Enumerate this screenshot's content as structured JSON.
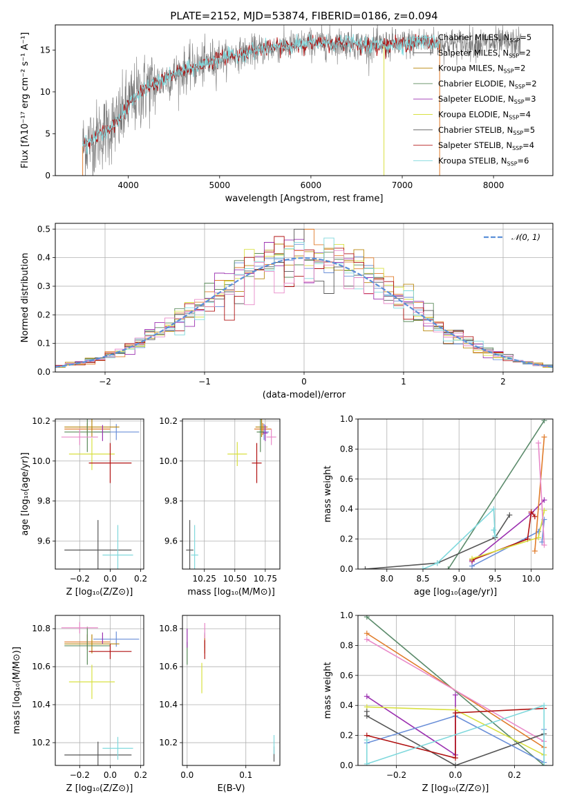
{
  "colors": {
    "Chabrier MILES": "#6a8fd8",
    "Salpeter MILES": "#e07b2a",
    "Kroupa MILES": "#b8860b",
    "Chabrier ELODIE": "#5a8a5a",
    "Salpeter ELODIE": "#9b30b0",
    "Kroupa ELODIE": "#d8e040",
    "Chabrier STELIB": "#555555",
    "Salpeter STELIB": "#b01010",
    "Kroupa STELIB": "#7fd8dc",
    "pink": "#e888c8",
    "green2": "#5a8a6a",
    "normal": "#5b8fd8",
    "grid": "#b0b0b0"
  },
  "chart_data": [
    {
      "id": "spectrum",
      "type": "line",
      "title": "PLATE=2152, MJD=53874, FIBERID=0186, z=0.094",
      "xlabel": "wavelength [Angstrom, rest frame]",
      "ylabel": "Flux [fλ10⁻¹⁷ erg cm⁻² s⁻¹ A⁻¹]",
      "xlim": [
        3200,
        8650
      ],
      "ylim": [
        0,
        18
      ],
      "xticks": [
        "4000",
        "5000",
        "6000",
        "7000",
        "8000"
      ],
      "yticks": [
        "0",
        "5",
        "10",
        "15"
      ],
      "grid": false,
      "legend_position": "upper-right",
      "legend": [
        {
          "name": "Chabrier MILES, N",
          "sub": "SSP",
          "tail": "=5"
        },
        {
          "name": "Salpeter MILES, N",
          "sub": "SSP",
          "tail": "=2"
        },
        {
          "name": "Kroupa MILES, N",
          "sub": "SSP",
          "tail": "=2"
        },
        {
          "name": "Chabrier ELODIE, N",
          "sub": "SSP",
          "tail": "=2"
        },
        {
          "name": "Salpeter ELODIE, N",
          "sub": "SSP",
          "tail": "=3"
        },
        {
          "name": "Kroupa ELODIE, N",
          "sub": "SSP",
          "tail": "=4"
        },
        {
          "name": "Chabrier STELIB, N",
          "sub": "SSP",
          "tail": "=5"
        },
        {
          "name": "Salpeter STELIB, N",
          "sub": "SSP",
          "tail": "=4"
        },
        {
          "name": "Kroupa STELIB, N",
          "sub": "SSP",
          "tail": "=6"
        }
      ],
      "continuum_points": {
        "x": [
          3500,
          3700,
          3900,
          4000,
          4200,
          4400,
          4600,
          4800,
          5000,
          5200,
          5400,
          5600,
          5800,
          6000,
          6200,
          6400,
          6600,
          6800,
          7000,
          7200,
          7400
        ],
        "y": [
          3.5,
          5.0,
          6.5,
          8.5,
          10.5,
          11.5,
          12.5,
          13.2,
          14.0,
          14.5,
          15.0,
          15.3,
          15.5,
          15.8,
          15.8,
          15.9,
          15.5,
          15.6,
          15.7,
          16.0,
          15.8
        ]
      },
      "noisy_data_range": [
        3500,
        8300
      ],
      "model_range": [
        3500,
        7410
      ]
    },
    {
      "id": "residuals",
      "type": "step",
      "xlabel": "(data-model)/error",
      "ylabel": "Normed distribution",
      "xlim": [
        -2.5,
        2.5
      ],
      "ylim": [
        0,
        0.52
      ],
      "xticks": [
        "−2",
        "−1",
        "0",
        "1",
        "2"
      ],
      "yticks": [
        "0.0",
        "0.1",
        "0.2",
        "0.3",
        "0.4",
        "0.5"
      ],
      "grid": true,
      "legend_position": "upper-right",
      "legend": "𝒩(0, 1)",
      "bin_width": 0.1,
      "bin_start": -2.5,
      "gaussian": {
        "mu": 0,
        "sigma": 1
      }
    },
    {
      "id": "age_vs_Z",
      "type": "errorbar",
      "xlabel": "Z [log₁₀(Z/Z⊙)]",
      "ylabel": "age  [log₁₀(age/yr)]",
      "xlim": [
        -0.36,
        0.22
      ],
      "ylim": [
        9.46,
        10.21
      ],
      "xticks": [
        "−0.2",
        "0.0",
        "0.2"
      ],
      "yticks": [
        "9.6",
        "9.8",
        "10.0",
        "10.2"
      ],
      "grid": true,
      "points": [
        {
          "model": "Chabrier MILES",
          "x": 0.04,
          "xerr": 0.15,
          "y": 10.145,
          "yerr": 0.04
        },
        {
          "model": "Salpeter MILES",
          "x": -0.15,
          "xerr": 0.15,
          "y": 10.16,
          "yerr": 0.03
        },
        {
          "model": "Kroupa MILES",
          "x": -0.12,
          "xerr": 0.18,
          "y": 10.17,
          "yerr": 0.05
        },
        {
          "model": "Chabrier ELODIE",
          "x": -0.15,
          "xerr": 0.15,
          "y": 10.145,
          "yerr": 0.1
        },
        {
          "model": "Salpeter ELODIE",
          "x": -0.05,
          "xerr": 0.0,
          "y": 10.14,
          "yerr": 0.04
        },
        {
          "model": "Kroupa ELODIE",
          "x": -0.12,
          "xerr": 0.15,
          "y": 10.035,
          "yerr": 0.08
        },
        {
          "model": "Chabrier STELIB",
          "x": -0.08,
          "xerr": 0.22,
          "y": 9.555,
          "yerr": 0.15
        },
        {
          "model": "Salpeter STELIB",
          "x": 0.0,
          "xerr": 0.14,
          "y": 9.99,
          "yerr": 0.1
        },
        {
          "model": "Kroupa STELIB",
          "x": 0.05,
          "xerr": 0.1,
          "y": 9.53,
          "yerr": 0.15
        },
        {
          "model": "pink",
          "x": -0.2,
          "xerr": 0.12,
          "y": 10.12,
          "yerr": 0.04
        }
      ]
    },
    {
      "id": "age_vs_mass",
      "type": "errorbar",
      "xlabel": "mass [log₁₀(M/M⊙)]",
      "ylabel": "",
      "xlim": [
        10.07,
        10.87
      ],
      "ylim": [
        9.46,
        10.21
      ],
      "xticks": [
        "10.25",
        "10.50",
        "10.75"
      ],
      "yticks": [
        "9.6",
        "9.8",
        "10.0",
        "10.2"
      ],
      "grid": true,
      "points": [
        {
          "model": "Chabrier MILES",
          "x": 10.74,
          "xerr": 0.04,
          "y": 10.145,
          "yerr": 0.04
        },
        {
          "model": "Salpeter MILES",
          "x": 10.73,
          "xerr": 0.07,
          "y": 10.16,
          "yerr": 0.03
        },
        {
          "model": "Kroupa MILES",
          "x": 10.72,
          "xerr": 0.05,
          "y": 10.17,
          "yerr": 0.05
        },
        {
          "model": "Chabrier ELODIE",
          "x": 10.71,
          "xerr": 0.03,
          "y": 10.145,
          "yerr": 0.1
        },
        {
          "model": "Salpeter ELODIE",
          "x": 10.75,
          "xerr": 0.02,
          "y": 10.14,
          "yerr": 0.04
        },
        {
          "model": "Kroupa ELODIE",
          "x": 10.52,
          "xerr": 0.08,
          "y": 10.035,
          "yerr": 0.06
        },
        {
          "model": "Chabrier STELIB",
          "x": 10.13,
          "xerr": 0.03,
          "y": 9.555,
          "yerr": 0.15
        },
        {
          "model": "Salpeter STELIB",
          "x": 10.68,
          "xerr": 0.04,
          "y": 9.99,
          "yerr": 0.1
        },
        {
          "model": "Kroupa STELIB",
          "x": 10.17,
          "xerr": 0.03,
          "y": 9.53,
          "yerr": 0.15
        },
        {
          "model": "pink",
          "x": 10.8,
          "xerr": 0.04,
          "y": 10.12,
          "yerr": 0.04
        }
      ]
    },
    {
      "id": "weight_vs_age",
      "type": "line",
      "xlabel": "age  [log₁₀(age/yr)]",
      "ylabel": "mass weight",
      "xlim": [
        7.6,
        10.3
      ],
      "ylim": [
        0,
        1.0
      ],
      "xticks": [
        "8.0",
        "8.5",
        "9.0",
        "9.5",
        "10.0"
      ],
      "yticks": [
        "0.0",
        "0.2",
        "0.4",
        "0.6",
        "0.8",
        "1.0"
      ],
      "grid": true,
      "series": [
        {
          "model": "green2",
          "x": [
            8.85,
            10.18
          ],
          "y": [
            0.0,
            0.99
          ]
        },
        {
          "model": "Chabrier STELIB",
          "x": [
            7.7,
            8.7,
            9.5,
            9.7
          ],
          "y": [
            0.0,
            0.04,
            0.21,
            0.36
          ]
        },
        {
          "model": "Kroupa STELIB",
          "x": [
            8.5,
            8.7,
            9.48,
            9.5,
            9.48
          ],
          "y": [
            0.0,
            0.04,
            0.4,
            0.22,
            0.26
          ]
        },
        {
          "model": "Chabrier MILES",
          "x": [
            9.18,
            10.1,
            10.18,
            10.15
          ],
          "y": [
            0.02,
            0.25,
            0.33,
            0.18
          ]
        },
        {
          "model": "Salpeter ELODIE",
          "x": [
            9.18,
            10.0,
            10.18
          ],
          "y": [
            0.05,
            0.37,
            0.46
          ]
        },
        {
          "model": "Salpeter STELIB",
          "x": [
            9.18,
            9.95,
            10.0,
            10.05
          ],
          "y": [
            0.06,
            0.2,
            0.38,
            0.35
          ]
        },
        {
          "model": "Kroupa ELODIE",
          "x": [
            9.18,
            10.1,
            10.18
          ],
          "y": [
            0.07,
            0.21,
            0.39
          ]
        },
        {
          "model": "Salpeter MILES",
          "x": [
            10.05,
            10.18
          ],
          "y": [
            0.12,
            0.88
          ]
        },
        {
          "model": "pink",
          "x": [
            10.1,
            10.18
          ],
          "y": [
            0.84,
            0.16
          ]
        }
      ]
    },
    {
      "id": "mass_vs_Z",
      "type": "errorbar",
      "xlabel": "Z [log₁₀(Z/Z⊙)]",
      "ylabel": "mass [log₁₀(M/M⊙)]",
      "xlim": [
        -0.36,
        0.22
      ],
      "ylim": [
        10.08,
        10.87
      ],
      "xticks": [
        "−0.2",
        "0.0",
        "0.2"
      ],
      "yticks": [
        "10.2",
        "10.4",
        "10.6",
        "10.8"
      ],
      "grid": true,
      "points": [
        {
          "model": "Chabrier MILES",
          "x": 0.04,
          "xerr": 0.15,
          "y": 10.745,
          "yerr": 0.04
        },
        {
          "model": "Salpeter MILES",
          "x": -0.15,
          "xerr": 0.15,
          "y": 10.73,
          "yerr": 0.04
        },
        {
          "model": "Kroupa MILES",
          "x": -0.12,
          "xerr": 0.18,
          "y": 10.72,
          "yerr": 0.05
        },
        {
          "model": "Chabrier ELODIE",
          "x": -0.15,
          "xerr": 0.15,
          "y": 10.71,
          "yerr": 0.1
        },
        {
          "model": "Salpeter ELODIE",
          "x": -0.05,
          "xerr": 0.0,
          "y": 10.75,
          "yerr": 0.03
        },
        {
          "model": "Kroupa ELODIE",
          "x": -0.12,
          "xerr": 0.15,
          "y": 10.52,
          "yerr": 0.09
        },
        {
          "model": "Chabrier STELIB",
          "x": -0.08,
          "xerr": 0.22,
          "y": 10.135,
          "yerr": 0.07
        },
        {
          "model": "Salpeter STELIB",
          "x": 0.0,
          "xerr": 0.14,
          "y": 10.68,
          "yerr": 0.04
        },
        {
          "model": "Kroupa STELIB",
          "x": 0.05,
          "xerr": 0.1,
          "y": 10.17,
          "yerr": 0.06
        },
        {
          "model": "pink",
          "x": -0.2,
          "xerr": 0.12,
          "y": 10.805,
          "yerr": 0.03
        }
      ]
    },
    {
      "id": "mass_vs_ebv",
      "type": "errorbar",
      "xlabel": "E(B-V)",
      "ylabel": "",
      "xlim": [
        -0.008,
        0.158
      ],
      "ylim": [
        10.08,
        10.87
      ],
      "xticks": [
        "0.0",
        "0.1"
      ],
      "yticks": [
        "10.2",
        "10.4",
        "10.6",
        "10.8"
      ],
      "grid": true,
      "points": [
        {
          "model": "Chabrier MILES",
          "x": 0.03,
          "xerr": 0.0,
          "y": 10.74,
          "yerr": 0.04
        },
        {
          "model": "Salpeter MILES",
          "x": 0.03,
          "xerr": 0.0,
          "y": 10.72,
          "yerr": 0.05
        },
        {
          "model": "Chabrier ELODIE",
          "x": 0.0,
          "xerr": 0.0,
          "y": 10.67,
          "yerr": 0.06
        },
        {
          "model": "Salpeter ELODIE",
          "x": 0.0,
          "xerr": 0.0,
          "y": 10.75,
          "yerr": 0.05
        },
        {
          "model": "Kroupa ELODIE",
          "x": 0.025,
          "xerr": 0.0,
          "y": 10.54,
          "yerr": 0.08
        },
        {
          "model": "Salpeter STELIB",
          "x": 0.03,
          "xerr": 0.0,
          "y": 10.69,
          "yerr": 0.05
        },
        {
          "model": "pink",
          "x": 0.03,
          "xerr": 0.0,
          "y": 10.79,
          "yerr": 0.04
        },
        {
          "model": "Chabrier STELIB",
          "x": 0.148,
          "xerr": 0.0,
          "y": 10.14,
          "yerr": 0.04
        },
        {
          "model": "Kroupa STELIB",
          "x": 0.148,
          "xerr": 0.0,
          "y": 10.19,
          "yerr": 0.05
        }
      ]
    },
    {
      "id": "weight_vs_Z",
      "type": "line",
      "xlabel": "Z [log₁₀(Z/Z⊙)]",
      "ylabel": "mass weight",
      "xlim": [
        -0.33,
        0.33
      ],
      "ylim": [
        0,
        1.0
      ],
      "xticks": [
        "−0.2",
        "0.0",
        "0.2"
      ],
      "yticks": [
        "0.0",
        "0.2",
        "0.4",
        "0.6",
        "0.8",
        "1.0"
      ],
      "grid": true,
      "series": [
        {
          "model": "green2",
          "x": [
            -0.3,
            0.3
          ],
          "y": [
            0.99,
            0.0
          ]
        },
        {
          "model": "Salpeter MILES",
          "x": [
            -0.3,
            0.3
          ],
          "y": [
            0.88,
            0.12
          ]
        },
        {
          "model": "pink",
          "x": [
            -0.3,
            0.3
          ],
          "y": [
            0.84,
            0.16
          ]
        },
        {
          "model": "Salpeter ELODIE",
          "x": [
            -0.3,
            0.0,
            0.0
          ],
          "y": [
            0.46,
            0.07,
            0.47
          ]
        },
        {
          "model": "Kroupa ELODIE",
          "x": [
            -0.3,
            0.0,
            0.3
          ],
          "y": [
            0.39,
            0.37,
            0.07
          ]
        },
        {
          "model": "Chabrier STELIB",
          "x": [
            -0.3,
            -0.3,
            0.0,
            0.3
          ],
          "y": [
            0.36,
            0.33,
            0.0,
            0.21
          ]
        },
        {
          "model": "Chabrier MILES",
          "x": [
            -0.3,
            0.0,
            0.3,
            0.3
          ],
          "y": [
            0.15,
            0.33,
            0.02,
            0.24
          ]
        },
        {
          "model": "Salpeter STELIB",
          "x": [
            -0.3,
            0.0,
            0.0,
            0.3
          ],
          "y": [
            0.2,
            0.05,
            0.35,
            0.38
          ]
        },
        {
          "model": "Kroupa STELIB",
          "x": [
            -0.3,
            -0.3,
            0.3,
            0.3
          ],
          "y": [
            0.17,
            0.01,
            0.4,
            0.0
          ]
        }
      ]
    }
  ]
}
